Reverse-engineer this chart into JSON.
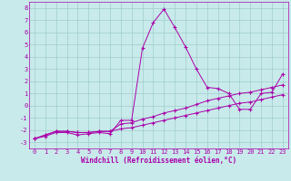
{
  "xlabel": "Windchill (Refroidissement éolien,°C)",
  "bg_color": "#c8eaea",
  "line_color": "#aa00aa",
  "grid_color": "#a0cccc",
  "spine_color": "#aa00aa",
  "xlim": [
    -0.5,
    23.5
  ],
  "ylim": [
    -3.5,
    8.5
  ],
  "xticks": [
    0,
    1,
    2,
    3,
    4,
    5,
    6,
    7,
    8,
    9,
    10,
    11,
    12,
    13,
    14,
    15,
    16,
    17,
    18,
    19,
    20,
    21,
    22,
    23
  ],
  "yticks": [
    -3,
    -2,
    -1,
    0,
    1,
    2,
    3,
    4,
    5,
    6,
    7,
    8
  ],
  "line1_x": [
    0,
    1,
    2,
    3,
    4,
    5,
    6,
    7,
    8,
    9,
    10,
    11,
    12,
    13,
    14,
    15,
    16,
    17,
    18,
    19,
    20,
    21,
    22,
    23
  ],
  "line1_y": [
    -2.7,
    -2.5,
    -2.2,
    -2.2,
    -2.4,
    -2.3,
    -2.2,
    -2.3,
    -1.2,
    -1.2,
    4.7,
    6.8,
    7.9,
    6.4,
    4.8,
    3.0,
    1.5,
    1.4,
    1.0,
    -0.3,
    -0.3,
    1.0,
    1.1,
    2.6
  ],
  "line2_x": [
    0,
    1,
    2,
    3,
    4,
    5,
    6,
    7,
    8,
    9,
    10,
    11,
    12,
    13,
    14,
    15,
    16,
    17,
    18,
    19,
    20,
    21,
    22,
    23
  ],
  "line2_y": [
    -2.7,
    -2.4,
    -2.1,
    -2.1,
    -2.2,
    -2.2,
    -2.1,
    -2.1,
    -1.5,
    -1.4,
    -1.1,
    -0.9,
    -0.6,
    -0.4,
    -0.2,
    0.1,
    0.4,
    0.6,
    0.8,
    1.0,
    1.1,
    1.3,
    1.5,
    1.7
  ],
  "line3_x": [
    0,
    1,
    2,
    3,
    4,
    5,
    6,
    7,
    8,
    9,
    10,
    11,
    12,
    13,
    14,
    15,
    16,
    17,
    18,
    19,
    20,
    21,
    22,
    23
  ],
  "line3_y": [
    -2.7,
    -2.4,
    -2.1,
    -2.1,
    -2.2,
    -2.2,
    -2.1,
    -2.1,
    -1.9,
    -1.8,
    -1.6,
    -1.4,
    -1.2,
    -1.0,
    -0.8,
    -0.6,
    -0.4,
    -0.2,
    0.0,
    0.2,
    0.3,
    0.5,
    0.7,
    0.9
  ]
}
